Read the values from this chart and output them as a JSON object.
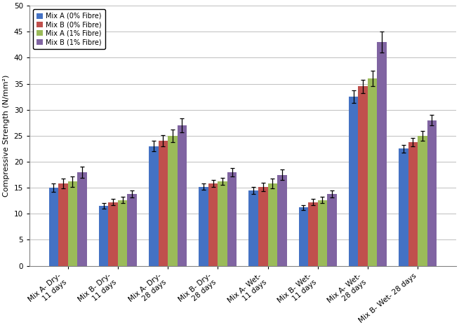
{
  "categories": [
    "Mix A- Dry-\n 11 days",
    "Mix B- Dry-\n 11 days",
    "Mix A- Dry-\n 28 days",
    "Mix B- Dry-\n 28 days",
    "Mix A- Wet-\n 11 days",
    "Mix B- Wet-\n 11 days",
    "Mix A- Wet-\n 28 days",
    "Mix B- Wet- 28 days"
  ],
  "legend_labels": [
    "Mix A (0% Fibre)",
    "Mix B (0% Fibre)",
    "Mix A (1% Fibre)",
    "Mix B (1% Fibre)"
  ],
  "bar_colors": [
    "#4472C4",
    "#C0504D",
    "#9BBB59",
    "#8064A2"
  ],
  "bar_data": [
    [
      15.0,
      11.5,
      23.0,
      15.2,
      14.5,
      11.2,
      32.5,
      22.5
    ],
    [
      15.8,
      12.2,
      24.0,
      15.8,
      15.2,
      12.2,
      34.5,
      23.8
    ],
    [
      16.2,
      12.6,
      25.0,
      16.2,
      15.8,
      12.6,
      36.0,
      25.0
    ],
    [
      18.0,
      13.8,
      27.0,
      18.0,
      17.5,
      13.8,
      43.0,
      28.0
    ]
  ],
  "error_bars": [
    [
      0.8,
      0.5,
      1.0,
      0.6,
      0.7,
      0.5,
      1.2,
      0.7
    ],
    [
      0.9,
      0.6,
      1.1,
      0.7,
      0.8,
      0.6,
      1.3,
      0.8
    ],
    [
      1.0,
      0.6,
      1.2,
      0.7,
      0.9,
      0.6,
      1.5,
      0.9
    ],
    [
      1.1,
      0.7,
      1.3,
      0.8,
      1.0,
      0.7,
      2.0,
      1.0
    ]
  ],
  "ylabel": "Compressive Strength (N/mm²)",
  "ylim": [
    0,
    50
  ],
  "yticks": [
    0,
    5,
    10,
    15,
    20,
    25,
    30,
    35,
    40,
    45,
    50
  ],
  "background_color": "#FFFFFF",
  "grid_color": "#BEBEBE",
  "axis_fontsize": 8,
  "tick_fontsize": 7.5,
  "legend_fontsize": 7,
  "bar_width": 0.19,
  "figsize": [
    6.54,
    4.67
  ],
  "dpi": 100
}
